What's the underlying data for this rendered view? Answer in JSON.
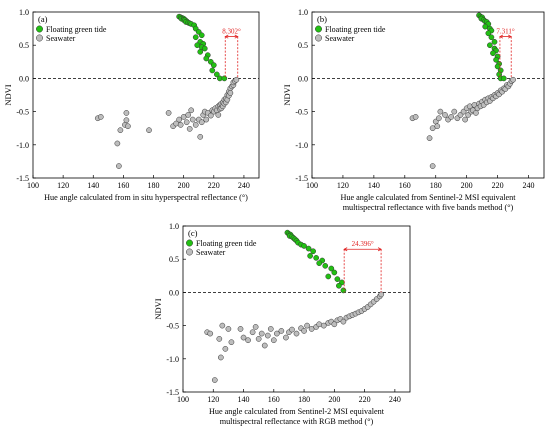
{
  "chart_data": [
    {
      "type": "scatter",
      "panel_label": "(a)",
      "xlabel_lines": [
        "Hue angle calculated from in situ hyperspectral reflectance (°)"
      ],
      "ylabel": "NDVI",
      "xlim": [
        100,
        250
      ],
      "ylim": [
        -1.5,
        1.0
      ],
      "xticks": [
        100,
        120,
        140,
        160,
        180,
        200,
        220,
        240
      ],
      "yticks": [
        1.0,
        0.5,
        0.0,
        -0.5,
        -1.0,
        -1.5
      ],
      "zero_line": true,
      "legend_position": "top-left",
      "annotation": {
        "text": "8.302°",
        "x1": 227.6,
        "x2": 235.9,
        "y_top": 0.63
      },
      "series": [
        {
          "name": "Floating green tide",
          "color": "#22c013",
          "points": [
            [
              197,
              0.93
            ],
            [
              198,
              0.92
            ],
            [
              199,
              0.91
            ],
            [
              198.5,
              0.9
            ],
            [
              200,
              0.9
            ],
            [
              200,
              0.88
            ],
            [
              201,
              0.88
            ],
            [
              202,
              0.86
            ],
            [
              201.5,
              0.85
            ],
            [
              203,
              0.84
            ],
            [
              204,
              0.83
            ],
            [
              205,
              0.82
            ],
            [
              207,
              0.8
            ],
            [
              208,
              0.75
            ],
            [
              210,
              0.7
            ],
            [
              212,
              0.65
            ],
            [
              208,
              0.62
            ],
            [
              211,
              0.55
            ],
            [
              213,
              0.52
            ],
            [
              209,
              0.5
            ],
            [
              212,
              0.47
            ],
            [
              214,
              0.45
            ],
            [
              211,
              0.4
            ],
            [
              216,
              0.35
            ],
            [
              215,
              0.3
            ],
            [
              218,
              0.25
            ],
            [
              220,
              0.2
            ],
            [
              219,
              0.12
            ],
            [
              222,
              0.06
            ],
            [
              224,
              0.0
            ],
            [
              227,
              0.0
            ]
          ]
        },
        {
          "name": "Seawater",
          "color": "#bdbdbd",
          "points": [
            [
              157,
              -1.32
            ],
            [
              143,
              -0.6
            ],
            [
              145,
              -0.58
            ],
            [
              156,
              -0.98
            ],
            [
              158,
              -0.78
            ],
            [
              161,
              -0.7
            ],
            [
              162,
              -0.63
            ],
            [
              163,
              -0.72
            ],
            [
              162,
              -0.52
            ],
            [
              177,
              -0.78
            ],
            [
              190,
              -0.52
            ],
            [
              193,
              -0.72
            ],
            [
              195,
              -0.68
            ],
            [
              197,
              -0.62
            ],
            [
              198,
              -0.7
            ],
            [
              200,
              -0.58
            ],
            [
              202,
              -0.66
            ],
            [
              203,
              -0.55
            ],
            [
              204,
              -0.76
            ],
            [
              205,
              -0.48
            ],
            [
              206,
              -0.62
            ],
            [
              208,
              -0.7
            ],
            [
              210,
              -0.62
            ],
            [
              211,
              -0.88
            ],
            [
              212,
              -0.66
            ],
            [
              213,
              -0.55
            ],
            [
              214,
              -0.5
            ],
            [
              215,
              -0.62
            ],
            [
              216,
              -0.52
            ],
            [
              218,
              -0.56
            ],
            [
              219,
              -0.48
            ],
            [
              220,
              -0.5
            ],
            [
              221,
              -0.45
            ],
            [
              222,
              -0.48
            ],
            [
              223,
              -0.42
            ],
            [
              223,
              -0.55
            ],
            [
              224,
              -0.4
            ],
            [
              224,
              -0.46
            ],
            [
              225,
              -0.38
            ],
            [
              225,
              -0.45
            ],
            [
              226,
              -0.36
            ],
            [
              226,
              -0.42
            ],
            [
              227,
              -0.32
            ],
            [
              227,
              -0.38
            ],
            [
              228,
              -0.3
            ],
            [
              228,
              -0.36
            ],
            [
              229,
              -0.25
            ],
            [
              229,
              -0.32
            ],
            [
              230,
              -0.2
            ],
            [
              230,
              -0.26
            ],
            [
              231,
              -0.15
            ],
            [
              231,
              -0.22
            ],
            [
              232,
              -0.12
            ],
            [
              233,
              -0.1
            ],
            [
              233,
              -0.06
            ],
            [
              234,
              -0.04
            ],
            [
              235,
              -0.02
            ]
          ]
        }
      ]
    },
    {
      "type": "scatter",
      "panel_label": "(b)",
      "xlabel_lines": [
        "Hue angle calculated from Sentinel-2 MSI equivalent",
        "multispectral reflectance with five bands method (°)"
      ],
      "ylabel": "NDVI",
      "xlim": [
        100,
        250
      ],
      "ylim": [
        -1.5,
        1.0
      ],
      "xticks": [
        100,
        120,
        140,
        160,
        180,
        200,
        220,
        240
      ],
      "yticks": [
        1.0,
        0.5,
        0.0,
        -0.5,
        -1.0,
        -1.5
      ],
      "zero_line": true,
      "legend_position": "top-left",
      "annotation": {
        "text": "7.311°",
        "x1": 221.5,
        "x2": 228.8,
        "y_top": 0.63
      },
      "series": [
        {
          "name": "Floating green tide",
          "color": "#22c013",
          "points": [
            [
              208,
              0.95
            ],
            [
              209,
              0.93
            ],
            [
              210,
              0.92
            ],
            [
              209.5,
              0.9
            ],
            [
              211,
              0.88
            ],
            [
              212,
              0.86
            ],
            [
              213,
              0.85
            ],
            [
              214,
              0.82
            ],
            [
              212,
              0.78
            ],
            [
              215,
              0.75
            ],
            [
              216,
              0.72
            ],
            [
              214,
              0.68
            ],
            [
              216,
              0.62
            ],
            [
              218,
              0.55
            ],
            [
              215,
              0.5
            ],
            [
              218,
              0.45
            ],
            [
              219,
              0.42
            ],
            [
              217,
              0.38
            ],
            [
              220,
              0.33
            ],
            [
              219,
              0.28
            ],
            [
              221,
              0.22
            ],
            [
              220,
              0.18
            ],
            [
              222,
              0.12
            ],
            [
              221,
              0.06
            ],
            [
              222,
              0.0
            ],
            [
              224,
              0.0
            ]
          ]
        },
        {
          "name": "Seawater",
          "color": "#bdbdbd",
          "points": [
            [
              178,
              -1.32
            ],
            [
              165,
              -0.6
            ],
            [
              167,
              -0.58
            ],
            [
              176,
              -0.9
            ],
            [
              178,
              -0.75
            ],
            [
              180,
              -0.65
            ],
            [
              181,
              -0.72
            ],
            [
              182,
              -0.6
            ],
            [
              183,
              -0.5
            ],
            [
              186,
              -0.55
            ],
            [
              188,
              -0.62
            ],
            [
              190,
              -0.58
            ],
            [
              192,
              -0.5
            ],
            [
              194,
              -0.6
            ],
            [
              196,
              -0.55
            ],
            [
              198,
              -0.5
            ],
            [
              199,
              -0.62
            ],
            [
              200,
              -0.45
            ],
            [
              201,
              -0.55
            ],
            [
              202,
              -0.42
            ],
            [
              203,
              -0.5
            ],
            [
              204,
              -0.48
            ],
            [
              205,
              -0.4
            ],
            [
              206,
              -0.52
            ],
            [
              207,
              -0.45
            ],
            [
              208,
              -0.38
            ],
            [
              209,
              -0.42
            ],
            [
              210,
              -0.35
            ],
            [
              211,
              -0.4
            ],
            [
              212,
              -0.32
            ],
            [
              213,
              -0.36
            ],
            [
              214,
              -0.3
            ],
            [
              215,
              -0.34
            ],
            [
              216,
              -0.28
            ],
            [
              217,
              -0.3
            ],
            [
              218,
              -0.25
            ],
            [
              219,
              -0.27
            ],
            [
              220,
              -0.22
            ],
            [
              221,
              -0.24
            ],
            [
              222,
              -0.18
            ],
            [
              223,
              -0.2
            ],
            [
              224,
              -0.15
            ],
            [
              225,
              -0.16
            ],
            [
              226,
              -0.1
            ],
            [
              227,
              -0.12
            ],
            [
              228,
              -0.08
            ],
            [
              229,
              -0.04
            ],
            [
              230,
              -0.02
            ]
          ]
        }
      ]
    },
    {
      "type": "scatter",
      "panel_label": "(c)",
      "xlabel_lines": [
        "Hue angle calculated from Sentinel-2 MSI equivalent",
        "multispectral reflectance with RGB method (°)"
      ],
      "ylabel": "NDVI",
      "xlim": [
        100,
        250
      ],
      "ylim": [
        -1.5,
        1.0
      ],
      "xticks": [
        100,
        120,
        140,
        160,
        180,
        200,
        220,
        240
      ],
      "yticks": [
        1.0,
        0.5,
        0.0,
        -0.5,
        -1.0,
        -1.5
      ],
      "zero_line": true,
      "legend_position": "top-left",
      "annotation": {
        "text": "24.396°",
        "x1": 206.5,
        "x2": 230.9,
        "y_top": 0.65
      },
      "series": [
        {
          "name": "Floating green tide",
          "color": "#22c013",
          "points": [
            [
              169,
              0.9
            ],
            [
              170,
              0.88
            ],
            [
              171,
              0.87
            ],
            [
              170.5,
              0.85
            ],
            [
              172,
              0.84
            ],
            [
              173,
              0.82
            ],
            [
              174,
              0.8
            ],
            [
              175,
              0.78
            ],
            [
              176,
              0.75
            ],
            [
              178,
              0.72
            ],
            [
              180,
              0.7
            ],
            [
              183,
              0.66
            ],
            [
              186,
              0.62
            ],
            [
              184,
              0.55
            ],
            [
              188,
              0.52
            ],
            [
              192,
              0.48
            ],
            [
              190,
              0.44
            ],
            [
              194,
              0.4
            ],
            [
              198,
              0.36
            ],
            [
              200,
              0.3
            ],
            [
              196,
              0.24
            ],
            [
              202,
              0.2
            ],
            [
              205,
              0.15
            ],
            [
              203,
              0.1
            ],
            [
              206,
              0.03
            ]
          ]
        },
        {
          "name": "Seawater",
          "color": "#bdbdbd",
          "points": [
            [
              121,
              -1.32
            ],
            [
              116,
              -0.6
            ],
            [
              118,
              -0.62
            ],
            [
              124,
              -0.7
            ],
            [
              126,
              -0.5
            ],
            [
              125,
              -0.98
            ],
            [
              128,
              -0.85
            ],
            [
              130,
              -0.55
            ],
            [
              132,
              -0.75
            ],
            [
              138,
              -0.55
            ],
            [
              140,
              -0.68
            ],
            [
              143,
              -0.72
            ],
            [
              146,
              -0.6
            ],
            [
              148,
              -0.52
            ],
            [
              150,
              -0.7
            ],
            [
              152,
              -0.62
            ],
            [
              154,
              -0.8
            ],
            [
              156,
              -0.65
            ],
            [
              158,
              -0.55
            ],
            [
              160,
              -0.72
            ],
            [
              162,
              -0.62
            ],
            [
              165,
              -0.58
            ],
            [
              168,
              -0.68
            ],
            [
              170,
              -0.6
            ],
            [
              172,
              -0.56
            ],
            [
              175,
              -0.62
            ],
            [
              178,
              -0.54
            ],
            [
              180,
              -0.58
            ],
            [
              182,
              -0.5
            ],
            [
              185,
              -0.55
            ],
            [
              188,
              -0.52
            ],
            [
              190,
              -0.48
            ],
            [
              193,
              -0.5
            ],
            [
              196,
              -0.46
            ],
            [
              198,
              -0.44
            ],
            [
              200,
              -0.48
            ],
            [
              202,
              -0.42
            ],
            [
              204,
              -0.4
            ],
            [
              206,
              -0.44
            ],
            [
              208,
              -0.38
            ],
            [
              210,
              -0.36
            ],
            [
              212,
              -0.34
            ],
            [
              214,
              -0.32
            ],
            [
              216,
              -0.3
            ],
            [
              218,
              -0.28
            ],
            [
              220,
              -0.25
            ],
            [
              222,
              -0.22
            ],
            [
              224,
              -0.18
            ],
            [
              226,
              -0.14
            ],
            [
              228,
              -0.1
            ],
            [
              230,
              -0.06
            ],
            [
              231,
              -0.03
            ]
          ]
        }
      ]
    }
  ]
}
